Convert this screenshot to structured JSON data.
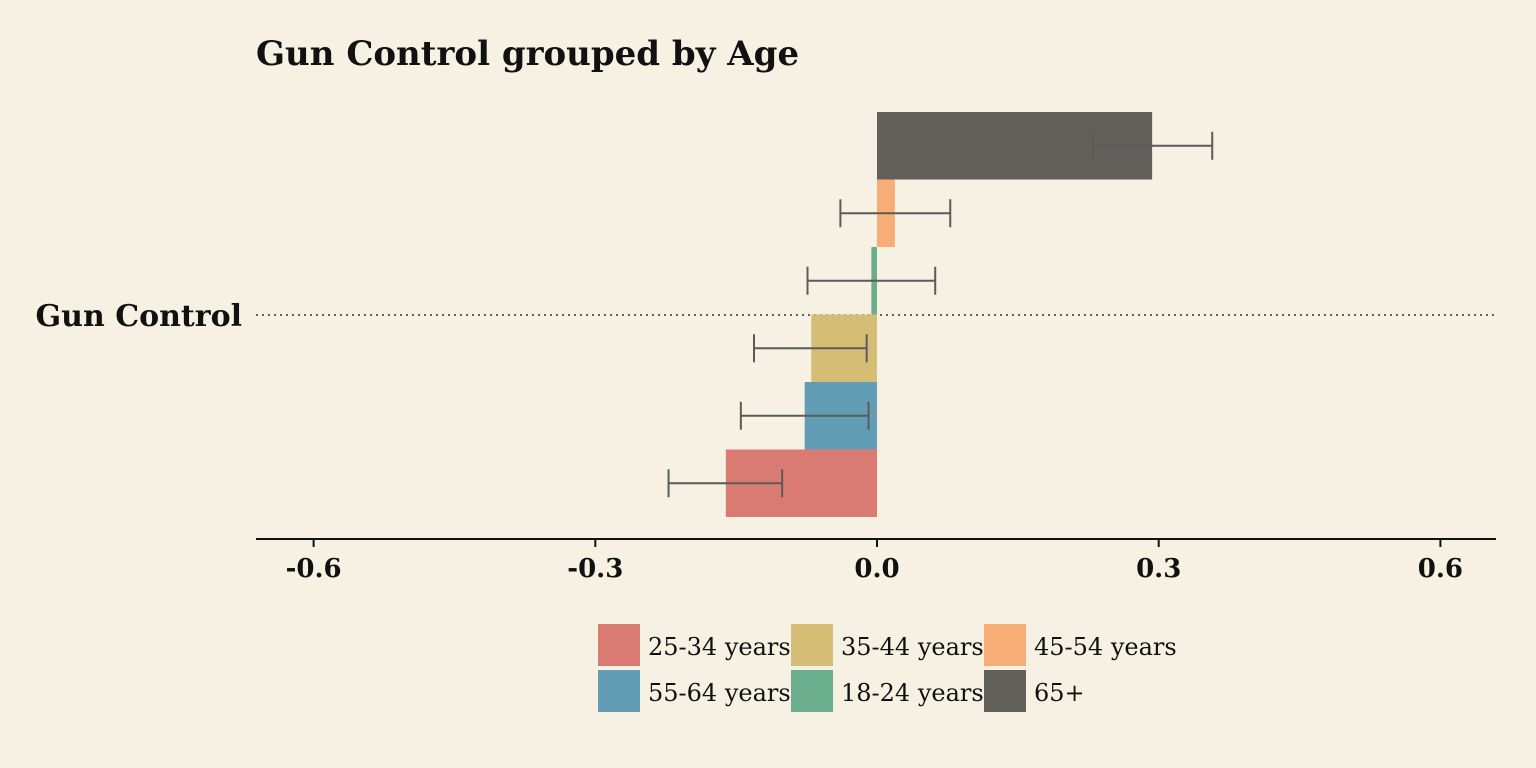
{
  "chart_data": {
    "type": "bar",
    "orientation": "horizontal",
    "title": "Gun Control grouped by Age",
    "categories": [
      "Gun Control"
    ],
    "xlim": [
      -0.66,
      0.66
    ],
    "xticks": [
      -0.6,
      -0.3,
      0.0,
      0.3,
      0.6
    ],
    "xtick_labels": [
      "-0.6",
      "-0.3",
      "0.0",
      "0.3",
      "0.6"
    ],
    "grid": false,
    "legend_position": "bottom-center",
    "series": [
      {
        "name": "65+",
        "value": 0.293,
        "ci": [
          0.23,
          0.357
        ],
        "color": "#62605a"
      },
      {
        "name": "45-54 years",
        "value": 0.019,
        "ci": [
          -0.039,
          0.078
        ],
        "color": "#f8ac76"
      },
      {
        "name": "18-24 years",
        "value": -0.006,
        "ci": [
          -0.074,
          0.062
        ],
        "color": "#6aae8d"
      },
      {
        "name": "35-44 years",
        "value": -0.07,
        "ci": [
          -0.131,
          -0.011
        ],
        "color": "#d5bd76"
      },
      {
        "name": "55-64 years",
        "value": -0.077,
        "ci": [
          -0.145,
          -0.009
        ],
        "color": "#639db5"
      },
      {
        "name": "25-34 years",
        "value": -0.161,
        "ci": [
          -0.222,
          -0.101
        ],
        "color": "#d97b72"
      }
    ],
    "legend_order": [
      "25-34 years",
      "35-44 years",
      "45-54 years",
      "55-64 years",
      "18-24 years",
      "65+"
    ]
  }
}
